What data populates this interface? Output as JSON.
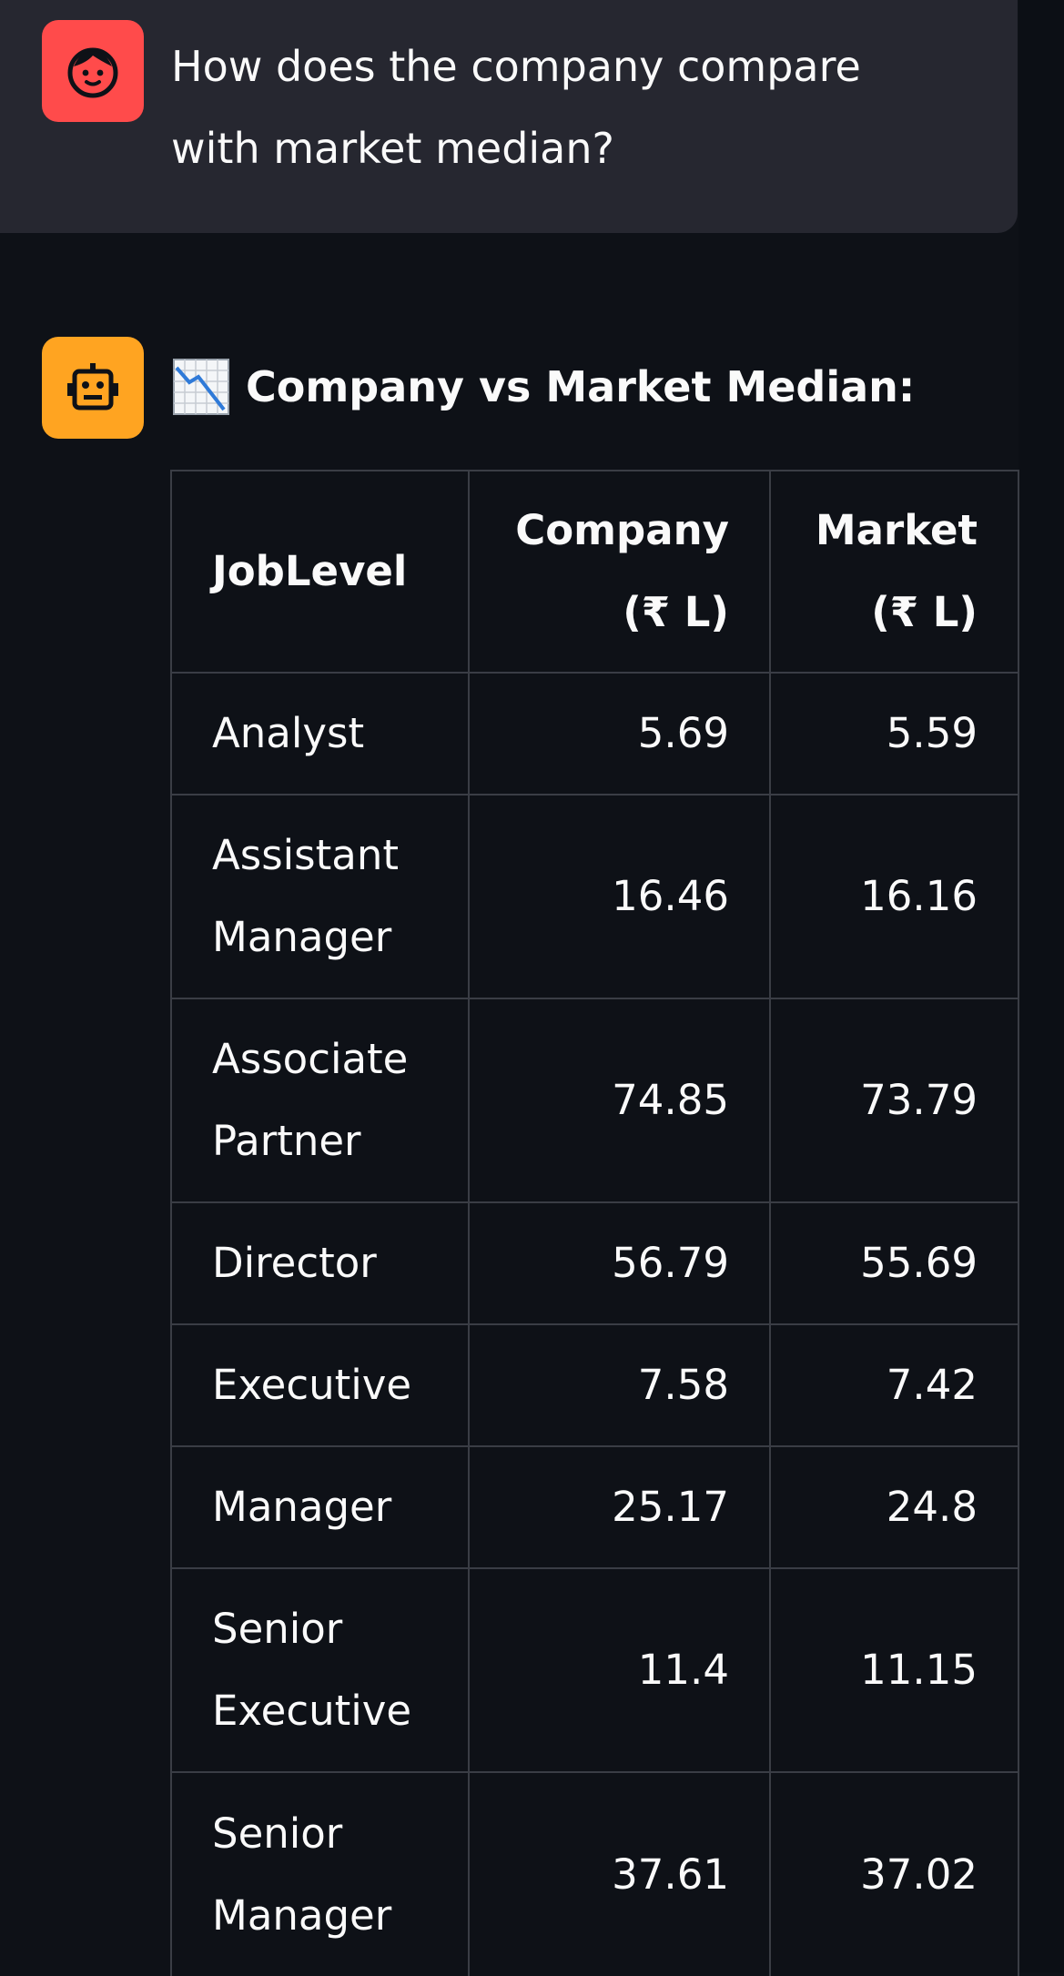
{
  "user_message": {
    "avatar_icon": "face-icon",
    "avatar_color": "#ff4b4b",
    "text": "How does the company compare with market median?"
  },
  "assistant_message": {
    "avatar_icon": "robot-icon",
    "avatar_color": "#ffa421",
    "heading_icon": "chart-decreasing-icon",
    "heading": "Company vs Market Median:"
  },
  "table": {
    "headers": [
      "JobLevel",
      "Company (₹ L)",
      "Market (₹ L)"
    ],
    "rows": [
      {
        "level": "Analyst",
        "company": "5.69",
        "market": "5.59"
      },
      {
        "level": "Assistant Manager",
        "company": "16.46",
        "market": "16.16"
      },
      {
        "level": "Associate Partner",
        "company": "74.85",
        "market": "73.79"
      },
      {
        "level": "Director",
        "company": "56.79",
        "market": "55.69"
      },
      {
        "level": "Executive",
        "company": "7.58",
        "market": "7.42"
      },
      {
        "level": "Manager",
        "company": "25.17",
        "market": "24.8"
      },
      {
        "level": "Senior Executive",
        "company": "11.4",
        "market": "11.15"
      },
      {
        "level": "Senior Manager",
        "company": "37.61",
        "market": "37.02"
      }
    ]
  }
}
